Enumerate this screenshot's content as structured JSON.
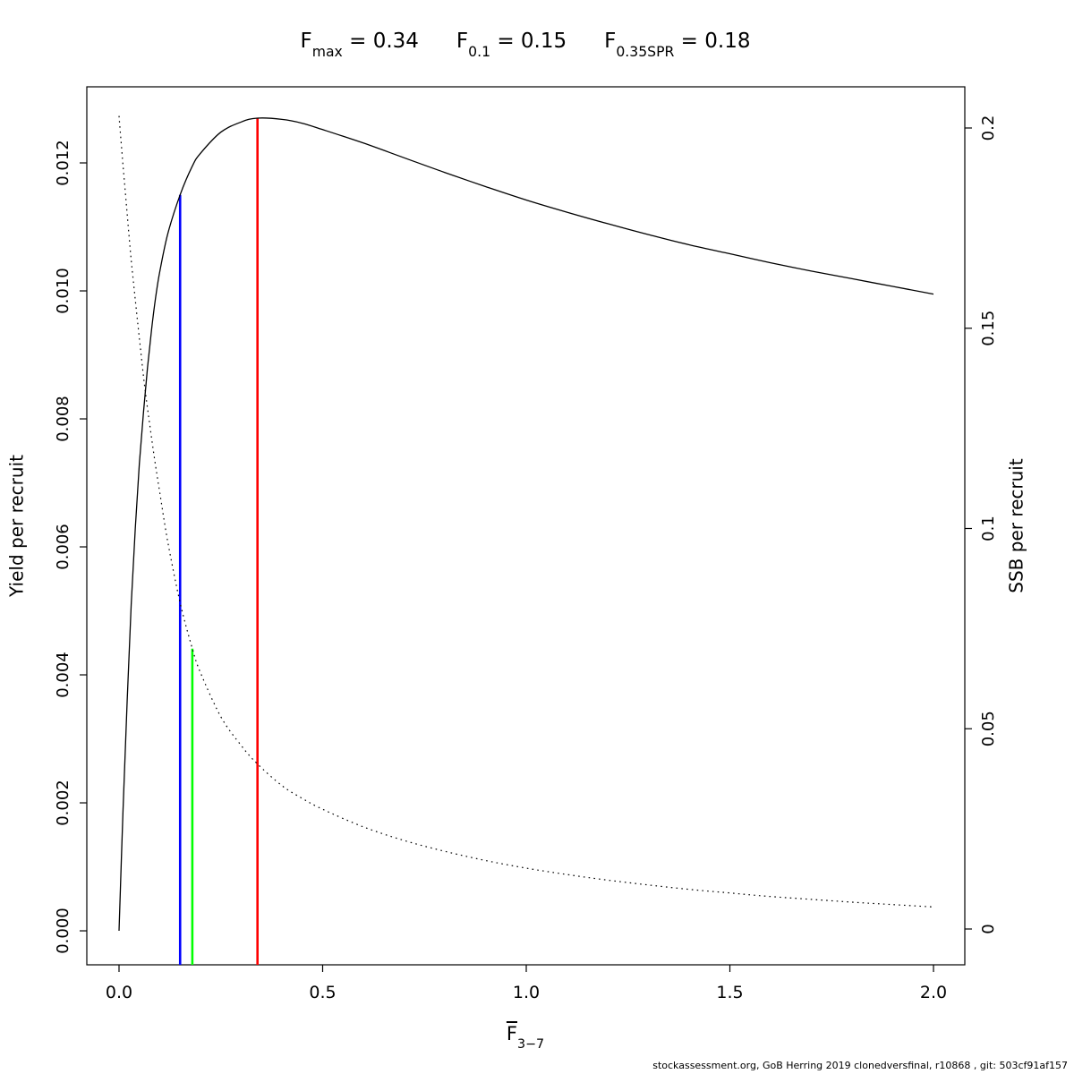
{
  "title": {
    "segments": [
      {
        "base": "F",
        "sub": "max",
        "rest": " = 0.34"
      },
      {
        "base": "F",
        "sub": "0.1",
        "rest": " = 0.15"
      },
      {
        "base": "F",
        "sub": "0.35SPR",
        "rest": " = 0.18"
      }
    ]
  },
  "footer": "stockassessment.org, GoB Herring 2019 clonedversfinal, r10868 , git: 503cf91af157",
  "chart_data": {
    "type": "line",
    "title": "Fmax = 0.34   F0.1 = 0.15   F0.35SPR = 0.18",
    "grid": false,
    "legend": false,
    "x_axis": {
      "label_base": "F",
      "label_sub": "3−7",
      "ticks": [
        0.0,
        0.5,
        1.0,
        1.5,
        2.0
      ],
      "tick_labels": [
        "0.0",
        "0.5",
        "1.0",
        "1.5",
        "2.0"
      ],
      "range": [
        -0.0791,
        2.0769
      ]
    },
    "y_left": {
      "label": "Yield per recruit",
      "ticks": [
        0.0,
        0.002,
        0.004,
        0.006,
        0.008,
        0.01,
        0.012
      ],
      "tick_labels": [
        "0.000",
        "0.002",
        "0.004",
        "0.006",
        "0.008",
        "0.010",
        "0.012"
      ],
      "range": [
        -0.000531,
        0.013189
      ]
    },
    "y_right": {
      "label": "SSB per recruit",
      "ticks": [
        0,
        0.05,
        0.1,
        0.15,
        0.2
      ],
      "tick_labels": [
        "0",
        "0.05",
        "0.1",
        "0.15",
        "0.2"
      ],
      "range": [
        -0.00894,
        0.21028
      ]
    },
    "series": [
      {
        "name": "yield-per-recruit",
        "axis": "left",
        "style": "solid",
        "color": "#000000",
        "points": [
          [
            0.0,
            0.0
          ],
          [
            0.01,
            0.0019
          ],
          [
            0.02,
            0.0036
          ],
          [
            0.03,
            0.0051
          ],
          [
            0.04,
            0.0063
          ],
          [
            0.05,
            0.0073
          ],
          [
            0.06,
            0.0081
          ],
          [
            0.07,
            0.0088
          ],
          [
            0.08,
            0.0094
          ],
          [
            0.09,
            0.0099
          ],
          [
            0.1,
            0.0103
          ],
          [
            0.12,
            0.0109
          ],
          [
            0.15,
            0.0115
          ],
          [
            0.18,
            0.01195
          ],
          [
            0.2,
            0.01215
          ],
          [
            0.25,
            0.01248
          ],
          [
            0.3,
            0.01264
          ],
          [
            0.34,
            0.0127
          ],
          [
            0.4,
            0.01268
          ],
          [
            0.45,
            0.01262
          ],
          [
            0.5,
            0.01252
          ],
          [
            0.6,
            0.01231
          ],
          [
            0.7,
            0.01208
          ],
          [
            0.8,
            0.01185
          ],
          [
            0.9,
            0.01163
          ],
          [
            1.0,
            0.01142
          ],
          [
            1.1,
            0.01123
          ],
          [
            1.2,
            0.01105
          ],
          [
            1.3,
            0.01088
          ],
          [
            1.4,
            0.01072
          ],
          [
            1.5,
            0.01058
          ],
          [
            1.6,
            0.01044
          ],
          [
            1.7,
            0.01031
          ],
          [
            1.8,
            0.01019
          ],
          [
            1.9,
            0.01007
          ],
          [
            2.0,
            0.00995
          ]
        ]
      },
      {
        "name": "ssb-per-recruit",
        "axis": "right",
        "style": "dotted",
        "color": "#000000",
        "points": [
          [
            0.0,
            0.203
          ],
          [
            0.01,
            0.1905
          ],
          [
            0.02,
            0.1785
          ],
          [
            0.03,
            0.167
          ],
          [
            0.04,
            0.157
          ],
          [
            0.05,
            0.1475
          ],
          [
            0.06,
            0.138
          ],
          [
            0.07,
            0.13
          ],
          [
            0.08,
            0.1225
          ],
          [
            0.09,
            0.1155
          ],
          [
            0.1,
            0.109
          ],
          [
            0.12,
            0.0965
          ],
          [
            0.15,
            0.0815
          ],
          [
            0.18,
            0.07
          ],
          [
            0.2,
            0.064
          ],
          [
            0.25,
            0.053
          ],
          [
            0.3,
            0.0458
          ],
          [
            0.34,
            0.0412
          ],
          [
            0.4,
            0.0358
          ],
          [
            0.45,
            0.0326
          ],
          [
            0.5,
            0.0299
          ],
          [
            0.6,
            0.0255
          ],
          [
            0.7,
            0.0221
          ],
          [
            0.8,
            0.0194
          ],
          [
            0.9,
            0.0171
          ],
          [
            1.0,
            0.0152
          ],
          [
            1.1,
            0.0136
          ],
          [
            1.2,
            0.0122
          ],
          [
            1.3,
            0.011
          ],
          [
            1.4,
            0.0099
          ],
          [
            1.5,
            0.009
          ],
          [
            1.6,
            0.0081
          ],
          [
            1.7,
            0.0074
          ],
          [
            1.8,
            0.0067
          ],
          [
            1.9,
            0.0061
          ],
          [
            2.0,
            0.0055
          ]
        ]
      }
    ],
    "reference_lines": [
      {
        "name": "Fmax",
        "x": 0.34,
        "value_label": "0.34",
        "top_value": 0.0127,
        "top_axis": "left",
        "color": "#FF0000"
      },
      {
        "name": "F0.1",
        "x": 0.15,
        "value_label": "0.15",
        "top_value": 0.0115,
        "top_axis": "left",
        "color": "#0000FF"
      },
      {
        "name": "F0.35SPR",
        "x": 0.18,
        "value_label": "0.18",
        "top_value": 0.07,
        "top_axis": "right",
        "color": "#00FF00"
      }
    ]
  }
}
